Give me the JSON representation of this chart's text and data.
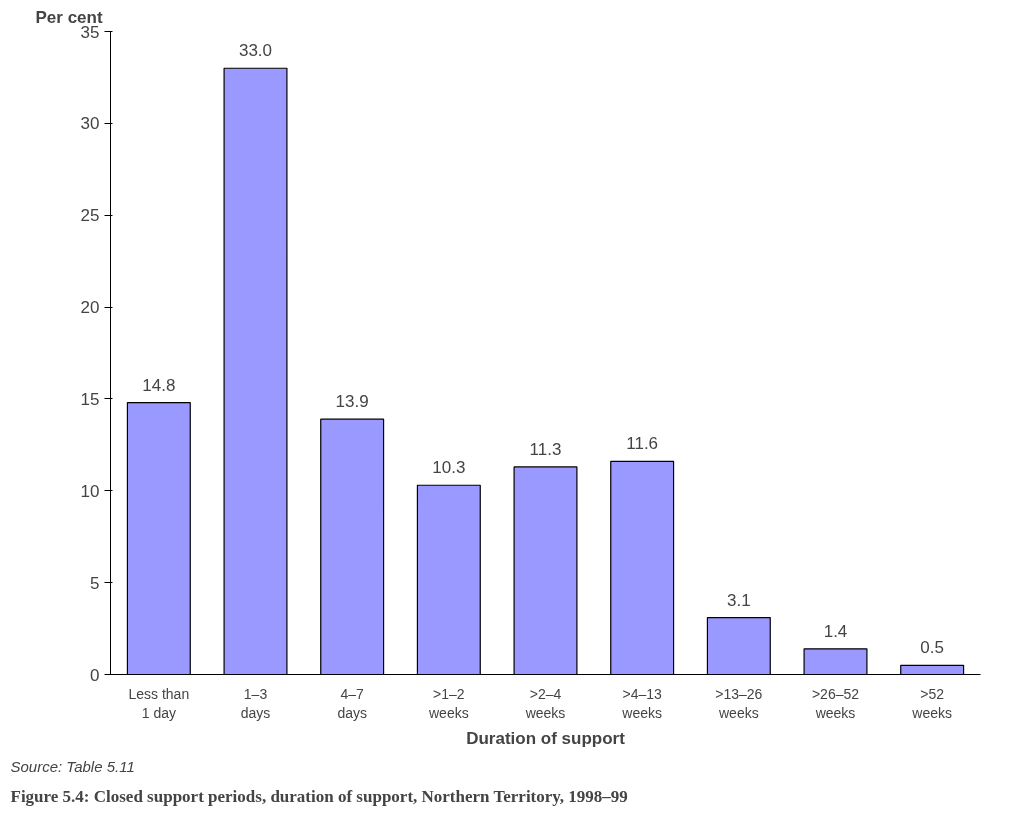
{
  "chart_data": {
    "type": "bar",
    "title": "Figure 5.4: Closed support periods, duration of support, Northern Territory, 1998–99",
    "ylabel": "Per cent",
    "xlabel": "Duration of support",
    "categories": [
      "Less than\n1 day",
      "1–3\ndays",
      "4–7\ndays",
      ">1–2\nweeks",
      ">2–4\nweeks",
      ">4–13\nweeks",
      ">13–26\nweeks",
      ">26–52\nweeks",
      ">52\nweeks"
    ],
    "values": [
      14.8,
      33.0,
      13.9,
      10.3,
      11.3,
      11.6,
      3.1,
      1.4,
      0.5
    ],
    "value_labels": [
      "14.8",
      "33.0",
      "13.9",
      "10.3",
      "11.3",
      "11.6",
      "3.1",
      "1.4",
      "0.5"
    ],
    "color": "#9999ff",
    "ylim": [
      0,
      35
    ],
    "yticks": [
      0,
      5,
      10,
      15,
      20,
      25,
      30,
      35
    ],
    "grid": false,
    "annotations": [
      "Source: Table 5.11"
    ]
  }
}
